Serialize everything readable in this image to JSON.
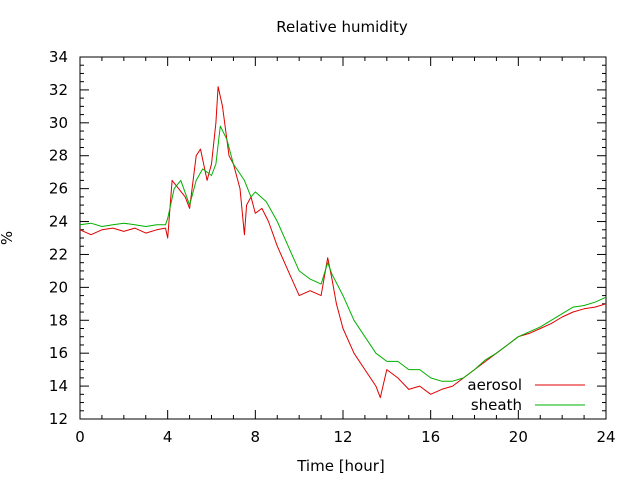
{
  "chart_data": {
    "type": "line",
    "title": "Relative humidity",
    "xlabel": "Time [hour]",
    "ylabel": "%",
    "xlim": [
      0,
      24
    ],
    "ylim": [
      12,
      34
    ],
    "xticks": [
      0,
      4,
      8,
      12,
      16,
      20,
      24
    ],
    "yticks": [
      12,
      14,
      16,
      18,
      20,
      22,
      24,
      26,
      28,
      30,
      32,
      34
    ],
    "grid": false,
    "legend_position": "bottom-right",
    "series": [
      {
        "name": "aerosol",
        "color": "#e00000",
        "x": [
          0,
          0.5,
          1,
          1.5,
          2,
          2.5,
          3,
          3.5,
          3.9,
          4.0,
          4.2,
          4.5,
          4.8,
          5.0,
          5.3,
          5.5,
          5.8,
          6.0,
          6.2,
          6.3,
          6.5,
          6.8,
          7.0,
          7.3,
          7.5,
          7.6,
          7.8,
          8.0,
          8.3,
          8.6,
          9.0,
          9.5,
          10.0,
          10.5,
          11.0,
          11.3,
          11.5,
          11.7,
          12.0,
          12.5,
          13.0,
          13.5,
          13.7,
          14.0,
          14.5,
          15.0,
          15.5,
          16.0,
          16.5,
          17.0,
          17.5,
          18.0,
          18.5,
          19.0,
          19.5,
          20.0,
          20.5,
          21.0,
          21.5,
          22.0,
          22.5,
          23.0,
          23.5,
          24.0
        ],
        "y": [
          23.5,
          23.2,
          23.5,
          23.6,
          23.4,
          23.6,
          23.3,
          23.5,
          23.6,
          23.0,
          26.5,
          26.0,
          25.5,
          24.8,
          28.0,
          28.4,
          26.5,
          27.5,
          30.0,
          32.2,
          31.0,
          28.0,
          27.5,
          26.0,
          23.2,
          25.0,
          25.5,
          24.5,
          24.8,
          24.0,
          22.5,
          21.0,
          19.5,
          19.8,
          19.5,
          21.8,
          20.5,
          19.0,
          17.5,
          16.0,
          15.0,
          14.0,
          13.3,
          15.0,
          14.5,
          13.8,
          14.0,
          13.5,
          13.8,
          14.0,
          14.5,
          15.0,
          15.5,
          16.0,
          16.5,
          17.0,
          17.2,
          17.5,
          17.8,
          18.2,
          18.5,
          18.7,
          18.8,
          19.0
        ]
      },
      {
        "name": "sheath",
        "color": "#00b000",
        "x": [
          0,
          0.5,
          1,
          1.5,
          2,
          2.5,
          3,
          3.5,
          3.9,
          4.0,
          4.3,
          4.6,
          5.0,
          5.3,
          5.6,
          6.0,
          6.2,
          6.4,
          6.7,
          7.0,
          7.5,
          7.8,
          8.0,
          8.5,
          9.0,
          9.5,
          10.0,
          10.5,
          11.0,
          11.3,
          11.5,
          12.0,
          12.5,
          13.0,
          13.5,
          14.0,
          14.5,
          15.0,
          15.5,
          16.0,
          16.5,
          17.0,
          17.5,
          18.0,
          18.5,
          19.0,
          19.5,
          20.0,
          20.5,
          21.0,
          21.5,
          22.0,
          22.5,
          23.0,
          23.5,
          24.0
        ],
        "y": [
          23.8,
          23.9,
          23.7,
          23.8,
          23.9,
          23.8,
          23.7,
          23.8,
          23.8,
          24.2,
          26.0,
          26.5,
          25.0,
          26.5,
          27.2,
          26.8,
          27.5,
          29.8,
          29.0,
          27.5,
          26.5,
          25.5,
          25.8,
          25.2,
          24.0,
          22.5,
          21.0,
          20.5,
          20.2,
          21.5,
          20.8,
          19.5,
          18.0,
          17.0,
          16.0,
          15.5,
          15.5,
          15.0,
          15.0,
          14.5,
          14.3,
          14.3,
          14.5,
          15.0,
          15.6,
          16.0,
          16.5,
          17.0,
          17.3,
          17.6,
          18.0,
          18.4,
          18.8,
          18.9,
          19.1,
          19.4
        ]
      }
    ]
  }
}
